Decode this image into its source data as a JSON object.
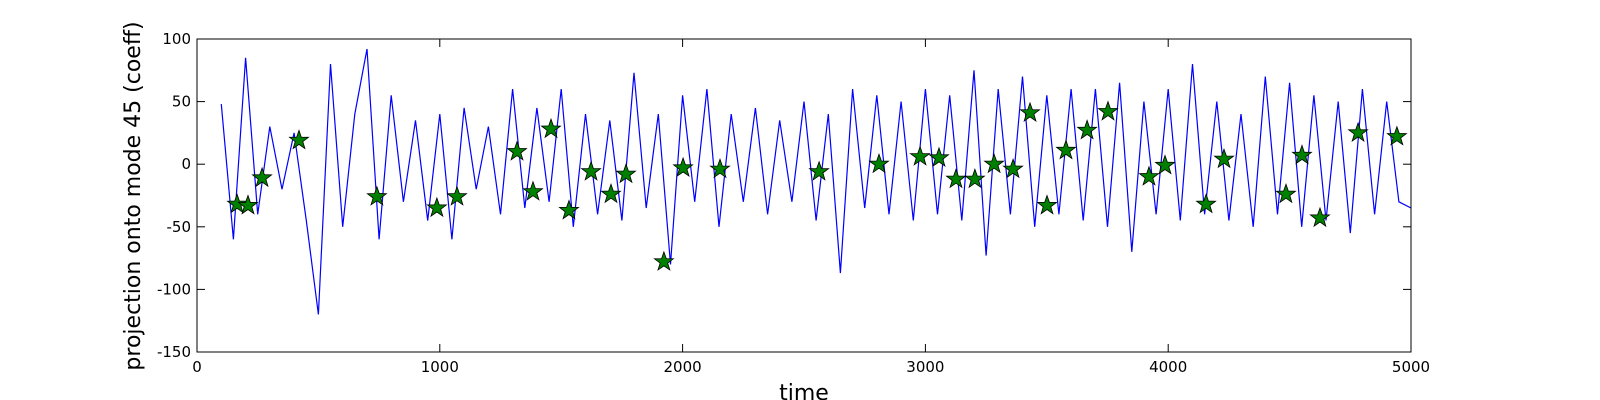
{
  "chart_data": {
    "type": "line",
    "xlabel": "time",
    "ylabel": "projection onto mode 45 (coeff)",
    "xlim": [
      0,
      5000
    ],
    "ylim": [
      -150,
      100
    ],
    "xticks": [
      0,
      1000,
      2000,
      3000,
      4000,
      5000
    ],
    "yticks": [
      -150,
      -100,
      -50,
      0,
      50,
      100
    ],
    "grid": false,
    "series": [
      {
        "kind": "line",
        "color": "#0000ff",
        "x": [
          100,
          150,
          200,
          250,
          300,
          350,
          400,
          450,
          500,
          550,
          600,
          650,
          700,
          750,
          800,
          850,
          900,
          950,
          1000,
          1050,
          1100,
          1150,
          1200,
          1250,
          1300,
          1350,
          1400,
          1450,
          1500,
          1550,
          1600,
          1650,
          1700,
          1750,
          1800,
          1850,
          1900,
          1950,
          2000,
          2050,
          2100,
          2150,
          2200,
          2250,
          2300,
          2350,
          2400,
          2450,
          2500,
          2550,
          2600,
          2650,
          2700,
          2750,
          2800,
          2850,
          2900,
          2950,
          3000,
          3050,
          3100,
          3150,
          3200,
          3250,
          3300,
          3350,
          3400,
          3450,
          3500,
          3550,
          3600,
          3650,
          3700,
          3750,
          3800,
          3850,
          3900,
          3950,
          4000,
          4050,
          4100,
          4150,
          4200,
          4250,
          4300,
          4350,
          4400,
          4450,
          4500,
          4550,
          4600,
          4650,
          4700,
          4750,
          4800,
          4850,
          4900,
          4950,
          5000
        ],
        "values": [
          48,
          -60,
          85,
          -40,
          30,
          -20,
          25,
          -45,
          -120,
          80,
          -50,
          40,
          92,
          -60,
          55,
          -30,
          35,
          -45,
          40,
          -60,
          45,
          -20,
          30,
          -40,
          60,
          -35,
          45,
          -30,
          60,
          -50,
          40,
          -40,
          35,
          -45,
          73,
          -35,
          40,
          -80,
          55,
          -30,
          60,
          -50,
          40,
          -30,
          45,
          -40,
          35,
          -30,
          50,
          -45,
          40,
          -87,
          60,
          -35,
          55,
          -40,
          50,
          -45,
          60,
          -40,
          55,
          -45,
          75,
          -73,
          60,
          -40,
          70,
          -50,
          55,
          -40,
          60,
          -45,
          60,
          -50,
          65,
          -70,
          50,
          -40,
          60,
          -45,
          80,
          -40,
          50,
          -45,
          40,
          -50,
          70,
          -40,
          65,
          -50,
          55,
          -45,
          50,
          -55,
          60,
          -40,
          50,
          -30,
          -35
        ]
      },
      {
        "kind": "scatter",
        "color": "#008000",
        "x": [
          165,
          210,
          268,
          420,
          741,
          988,
          1071,
          1318,
          1384,
          1458,
          1532,
          1623,
          1705,
          1767,
          1923,
          2002,
          2154,
          2562,
          2809,
          2978,
          3056,
          3126,
          3204,
          3283,
          3361,
          3431,
          3501,
          3579,
          3666,
          3752,
          3921,
          3987,
          4156,
          4230,
          4485,
          4551,
          4625,
          4782,
          4942
        ],
        "values": [
          -32,
          -33,
          -11,
          19,
          -26,
          -35,
          -26,
          10,
          -22,
          28,
          -37,
          -6,
          -24,
          -8,
          -78,
          -3,
          -4,
          -6,
          0,
          6,
          5,
          -12,
          -12,
          0,
          -4,
          41,
          -33,
          11,
          27,
          42,
          -10,
          -1,
          -32,
          4,
          -24,
          7,
          -43,
          25,
          22
        ]
      }
    ]
  }
}
